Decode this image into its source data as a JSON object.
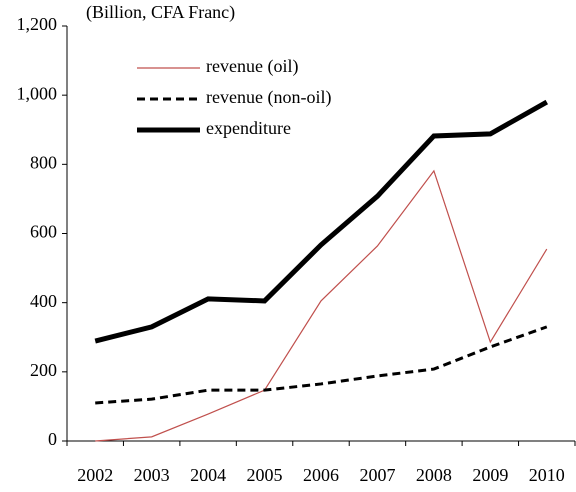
{
  "chart_data": {
    "type": "line",
    "y_axis_label": "(Billion, CFA Franc)",
    "categories": [
      "2002",
      "2003",
      "2004",
      "2005",
      "2006",
      "2007",
      "2008",
      "2009",
      "2010"
    ],
    "series": [
      {
        "name": "revenue (oil)",
        "color": "#c0504d",
        "dashed": false,
        "values": [
          0,
          12,
          78,
          147,
          405,
          564,
          781,
          286,
          555
        ]
      },
      {
        "name": "revenue (non-oil)",
        "color": "#000000",
        "dashed": true,
        "values": [
          110,
          121,
          147,
          147,
          165,
          188,
          208,
          272,
          330
        ]
      },
      {
        "name": "expenditure",
        "color": "#000000",
        "dashed": false,
        "values": [
          289,
          330,
          411,
          405,
          567,
          708,
          882,
          888,
          980
        ]
      }
    ],
    "ylim": [
      0,
      1200
    ],
    "yticks": [
      0,
      200,
      400,
      600,
      800,
      {
        "value": 1000,
        "label": "1,000"
      },
      {
        "value": 1200,
        "label": "1,200"
      }
    ],
    "grid": false,
    "legend": "top-left"
  }
}
